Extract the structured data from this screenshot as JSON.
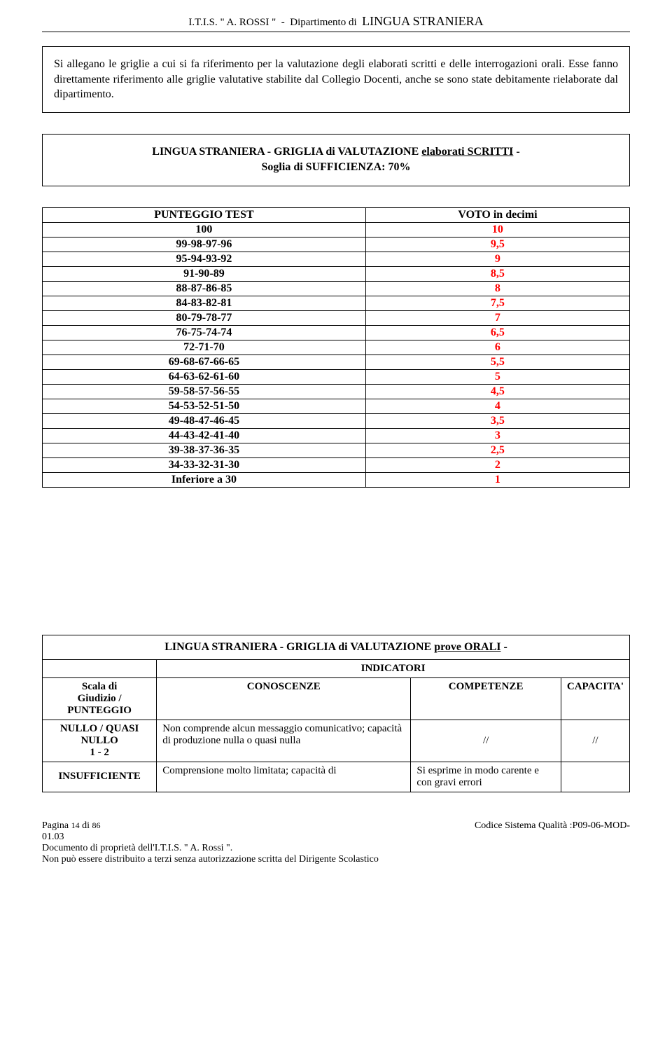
{
  "header": {
    "line": "I.T.I.S. \" A. ROSSI \"  -  Dipartimento di  LINGUA STRANIERA"
  },
  "intro": {
    "text": "Si allegano le griglie a cui si fa riferimento  per la valutazione degli elaborati scritti e delle interrogazioni orali. Esse fanno direttamente riferimento alle griglie valutative stabilite dal Collegio Docenti, anche se sono state debitamente rielaborate dal dipartimento."
  },
  "scritti": {
    "title_prefix": "LINGUA STRANIERA - GRIGLIA di VALUTAZIONE ",
    "title_underline": "elaborati SCRITTI",
    "title_suffix": "  -",
    "subtitle": "Soglia di SUFFICIENZA: 70%",
    "headers": {
      "left": "PUNTEGGIO TEST",
      "right": "VOTO in decimi"
    },
    "rows": [
      {
        "p": "100",
        "v": "10"
      },
      {
        "p": "99-98-97-96",
        "v": "9,5"
      },
      {
        "p": "95-94-93-92",
        "v": "9"
      },
      {
        "p": "91-90-89",
        "v": "8,5"
      },
      {
        "p": "88-87-86-85",
        "v": "8"
      },
      {
        "p": "84-83-82-81",
        "v": "7,5"
      },
      {
        "p": "80-79-78-77",
        "v": "7"
      },
      {
        "p": "76-75-74-74",
        "v": "6,5"
      },
      {
        "p": "72-71-70",
        "v": "6"
      },
      {
        "p": "69-68-67-66-65",
        "v": "5,5"
      },
      {
        "p": "64-63-62-61-60",
        "v": "5"
      },
      {
        "p": "59-58-57-56-55",
        "v": "4,5"
      },
      {
        "p": "54-53-52-51-50",
        "v": "4"
      },
      {
        "p": "49-48-47-46-45",
        "v": "3,5"
      },
      {
        "p": "44-43-42-41-40",
        "v": "3"
      },
      {
        "p": "39-38-37-36-35",
        "v": "2,5"
      },
      {
        "p": "34-33-32-31-30",
        "v": "2"
      },
      {
        "p": "Inferiore a 30",
        "v": "1"
      }
    ]
  },
  "orali": {
    "title_prefix": "LINGUA STRANIERA - GRIGLIA di VALUTAZIONE ",
    "title_underline": "prove ORALI",
    "title_suffix": "  -",
    "indicatori": "INDICATORI",
    "col_headers": {
      "scala": "Scala di\nGiudizio /\nPUNTEGGIO",
      "con": "CONOSCENZE",
      "comp": "COMPETENZE",
      "cap": "CAPACITA'"
    },
    "rows": [
      {
        "scala": "NULLO / QUASI NULLO\n1  -  2",
        "con": "Non comprende alcun messaggio comunicativo; capacità di produzione nulla o quasi nulla",
        "comp": "//",
        "cap": "//"
      },
      {
        "scala": "INSUFFICIENTE",
        "con": "Comprensione molto limitata; capacità di",
        "comp": "Si esprime in modo carente e con gravi errori",
        "cap": ""
      }
    ]
  },
  "footer": {
    "page": "Pagina 14 di 86",
    "code": "Codice Sistema Qualità :P09-06-MOD-",
    "code2": "01.03",
    "doc": "Documento di proprietà dell'I.T.I.S.  \" A. Rossi \".",
    "restrict": "Non può essere distribuito a terzi senza autorizzazione scritta del Dirigente Scolastico"
  },
  "colors": {
    "red": "#ff0000",
    "black": "#000000",
    "bg": "#ffffff"
  }
}
